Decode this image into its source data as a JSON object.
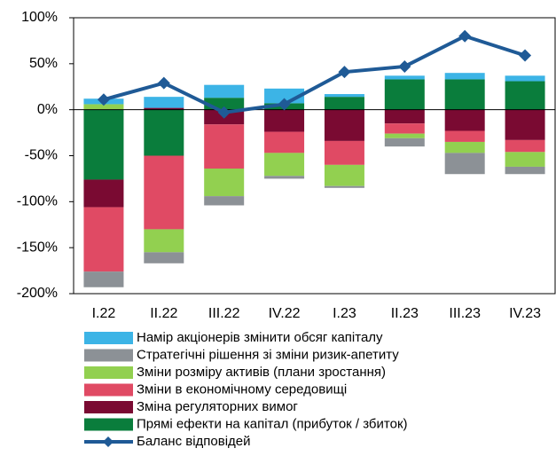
{
  "chart_data": {
    "type": "bar",
    "stacked": true,
    "categories": [
      "I.22",
      "II.22",
      "III.22",
      "IV.22",
      "I.23",
      "II.23",
      "III.23",
      "IV.23"
    ],
    "ylim": [
      -200,
      100
    ],
    "yticks": [
      {
        "value": 100,
        "label": "100%"
      },
      {
        "value": 50,
        "label": "50%"
      },
      {
        "value": 0,
        "label": "0%"
      },
      {
        "value": -50,
        "label": "-50%"
      },
      {
        "value": -100,
        "label": "-100%"
      },
      {
        "value": -150,
        "label": "-150%"
      },
      {
        "value": -200,
        "label": "-200%"
      }
    ],
    "series": [
      {
        "name": "Намір акціонерів змінити обсяг капіталу",
        "color": "#3cb4e6",
        "values": [
          6,
          12,
          14,
          16,
          3,
          4,
          7,
          6
        ]
      },
      {
        "name": "Стратегічні рішення зі зміни ризик-апетиту",
        "color": "#8c9196",
        "values": [
          -17,
          -12,
          -10,
          -3,
          -2,
          -9,
          -23,
          -8
        ]
      },
      {
        "name": "Зміни розміру активів (плани зростання)",
        "color": "#92d050",
        "values": [
          6,
          -25,
          -30,
          -25,
          -23,
          -5,
          -12,
          -16
        ]
      },
      {
        "name": "Зміни в економічному середовищі",
        "color": "#e04a64",
        "values": [
          -70,
          -80,
          -48,
          -23,
          -26,
          -11,
          -12,
          -13
        ]
      },
      {
        "name": "Зміна регуляторних вимог",
        "color": "#7a0a32",
        "values": [
          -30,
          2,
          -16,
          -24,
          -34,
          -15,
          -23,
          -33
        ]
      },
      {
        "name": "Прямі ефекти на капітал (прибуток / збиток)",
        "color": "#0a7d3c",
        "values": [
          -76,
          -50,
          13,
          7,
          14,
          33,
          33,
          31
        ]
      },
      {
        "name": "Баланс відповідей",
        "color": "#1f5a96",
        "type": "line",
        "values": [
          11,
          29,
          -3,
          6,
          41,
          47,
          80,
          59
        ]
      }
    ]
  }
}
